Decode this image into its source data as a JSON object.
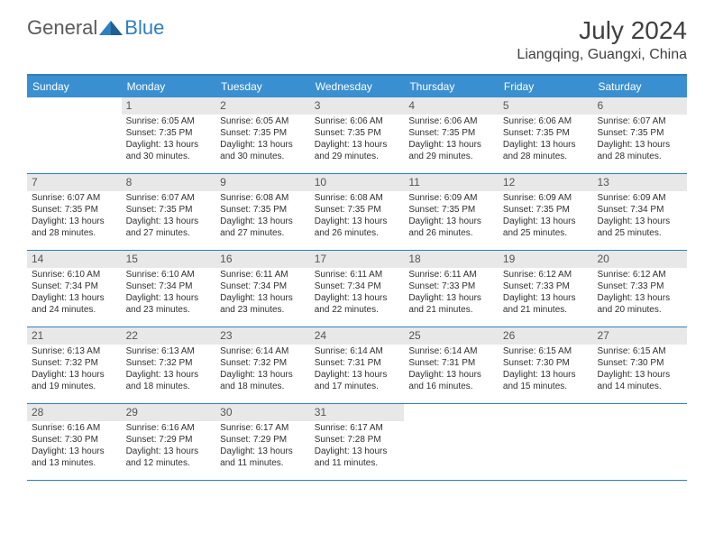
{
  "logo": {
    "text1": "General",
    "text2": "Blue"
  },
  "title": "July 2024",
  "location": "Liangqing, Guangxi, China",
  "colors": {
    "header_bg": "#3a8fd0",
    "border": "#2f7fc1",
    "daynum_bg": "#e8e8e8",
    "text": "#303030",
    "logo_gray": "#5a5a5a",
    "logo_blue": "#2f7fc1"
  },
  "day_names": [
    "Sunday",
    "Monday",
    "Tuesday",
    "Wednesday",
    "Thursday",
    "Friday",
    "Saturday"
  ],
  "weeks": [
    [
      null,
      {
        "n": "1",
        "sunrise": "6:05 AM",
        "sunset": "7:35 PM",
        "dl": "13 hours and 30 minutes."
      },
      {
        "n": "2",
        "sunrise": "6:05 AM",
        "sunset": "7:35 PM",
        "dl": "13 hours and 30 minutes."
      },
      {
        "n": "3",
        "sunrise": "6:06 AM",
        "sunset": "7:35 PM",
        "dl": "13 hours and 29 minutes."
      },
      {
        "n": "4",
        "sunrise": "6:06 AM",
        "sunset": "7:35 PM",
        "dl": "13 hours and 29 minutes."
      },
      {
        "n": "5",
        "sunrise": "6:06 AM",
        "sunset": "7:35 PM",
        "dl": "13 hours and 28 minutes."
      },
      {
        "n": "6",
        "sunrise": "6:07 AM",
        "sunset": "7:35 PM",
        "dl": "13 hours and 28 minutes."
      }
    ],
    [
      {
        "n": "7",
        "sunrise": "6:07 AM",
        "sunset": "7:35 PM",
        "dl": "13 hours and 28 minutes."
      },
      {
        "n": "8",
        "sunrise": "6:07 AM",
        "sunset": "7:35 PM",
        "dl": "13 hours and 27 minutes."
      },
      {
        "n": "9",
        "sunrise": "6:08 AM",
        "sunset": "7:35 PM",
        "dl": "13 hours and 27 minutes."
      },
      {
        "n": "10",
        "sunrise": "6:08 AM",
        "sunset": "7:35 PM",
        "dl": "13 hours and 26 minutes."
      },
      {
        "n": "11",
        "sunrise": "6:09 AM",
        "sunset": "7:35 PM",
        "dl": "13 hours and 26 minutes."
      },
      {
        "n": "12",
        "sunrise": "6:09 AM",
        "sunset": "7:35 PM",
        "dl": "13 hours and 25 minutes."
      },
      {
        "n": "13",
        "sunrise": "6:09 AM",
        "sunset": "7:34 PM",
        "dl": "13 hours and 25 minutes."
      }
    ],
    [
      {
        "n": "14",
        "sunrise": "6:10 AM",
        "sunset": "7:34 PM",
        "dl": "13 hours and 24 minutes."
      },
      {
        "n": "15",
        "sunrise": "6:10 AM",
        "sunset": "7:34 PM",
        "dl": "13 hours and 23 minutes."
      },
      {
        "n": "16",
        "sunrise": "6:11 AM",
        "sunset": "7:34 PM",
        "dl": "13 hours and 23 minutes."
      },
      {
        "n": "17",
        "sunrise": "6:11 AM",
        "sunset": "7:34 PM",
        "dl": "13 hours and 22 minutes."
      },
      {
        "n": "18",
        "sunrise": "6:11 AM",
        "sunset": "7:33 PM",
        "dl": "13 hours and 21 minutes."
      },
      {
        "n": "19",
        "sunrise": "6:12 AM",
        "sunset": "7:33 PM",
        "dl": "13 hours and 21 minutes."
      },
      {
        "n": "20",
        "sunrise": "6:12 AM",
        "sunset": "7:33 PM",
        "dl": "13 hours and 20 minutes."
      }
    ],
    [
      {
        "n": "21",
        "sunrise": "6:13 AM",
        "sunset": "7:32 PM",
        "dl": "13 hours and 19 minutes."
      },
      {
        "n": "22",
        "sunrise": "6:13 AM",
        "sunset": "7:32 PM",
        "dl": "13 hours and 18 minutes."
      },
      {
        "n": "23",
        "sunrise": "6:14 AM",
        "sunset": "7:32 PM",
        "dl": "13 hours and 18 minutes."
      },
      {
        "n": "24",
        "sunrise": "6:14 AM",
        "sunset": "7:31 PM",
        "dl": "13 hours and 17 minutes."
      },
      {
        "n": "25",
        "sunrise": "6:14 AM",
        "sunset": "7:31 PM",
        "dl": "13 hours and 16 minutes."
      },
      {
        "n": "26",
        "sunrise": "6:15 AM",
        "sunset": "7:30 PM",
        "dl": "13 hours and 15 minutes."
      },
      {
        "n": "27",
        "sunrise": "6:15 AM",
        "sunset": "7:30 PM",
        "dl": "13 hours and 14 minutes."
      }
    ],
    [
      {
        "n": "28",
        "sunrise": "6:16 AM",
        "sunset": "7:30 PM",
        "dl": "13 hours and 13 minutes."
      },
      {
        "n": "29",
        "sunrise": "6:16 AM",
        "sunset": "7:29 PM",
        "dl": "13 hours and 12 minutes."
      },
      {
        "n": "30",
        "sunrise": "6:17 AM",
        "sunset": "7:29 PM",
        "dl": "13 hours and 11 minutes."
      },
      {
        "n": "31",
        "sunrise": "6:17 AM",
        "sunset": "7:28 PM",
        "dl": "13 hours and 11 minutes."
      },
      null,
      null,
      null
    ]
  ],
  "labels": {
    "sunrise": "Sunrise:",
    "sunset": "Sunset:",
    "daylight": "Daylight:"
  }
}
